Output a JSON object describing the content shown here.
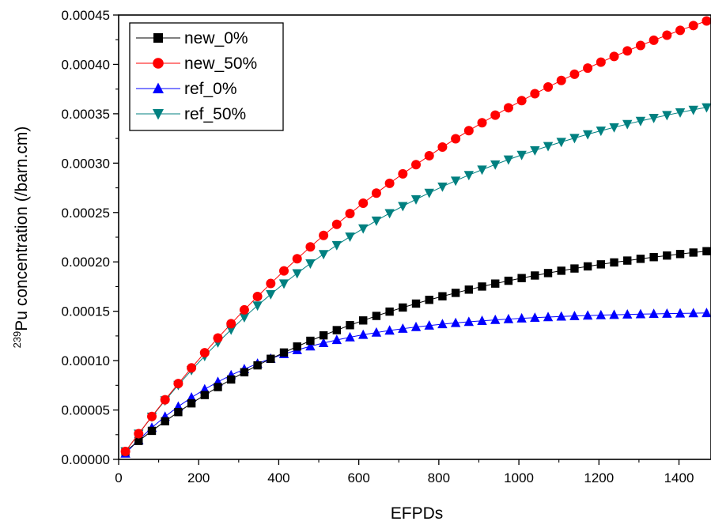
{
  "chart_data": {
    "type": "line",
    "title": "",
    "xlabel": "EFPDs",
    "ylabel": {
      "superscript": "239",
      "text": "Pu concentration (/barn.cm)"
    },
    "xlim": [
      0,
      1480
    ],
    "ylim": [
      0,
      0.00045
    ],
    "x_ticks": [
      0,
      200,
      400,
      600,
      800,
      1000,
      1200,
      1400
    ],
    "x_tick_labels": [
      "0",
      "200",
      "400",
      "600",
      "800",
      "1000",
      "1200",
      "1400"
    ],
    "y_ticks": [
      0,
      5e-05,
      0.0001,
      0.00015,
      0.0002,
      0.00025,
      0.0003,
      0.00035,
      0.0004,
      0.00045
    ],
    "y_tick_labels": [
      "0.00000",
      "0.00005",
      "0.00010",
      "0.00015",
      "0.00020",
      "0.00025",
      "0.00030",
      "0.00035",
      "0.00040",
      "0.00045"
    ],
    "grid": false,
    "legend_position": "top-left",
    "x_start": 17,
    "x_step": 33,
    "points_per_series": 45,
    "series": [
      {
        "name": "new_0%",
        "marker": "square",
        "color": "#000000",
        "model": {
          "asymptote": 0.00024,
          "tau": 700,
          "y0": 8e-06
        }
      },
      {
        "name": "new_50%",
        "marker": "circle",
        "color": "#ff0000",
        "model": {
          "asymptote": 0.00059,
          "tau": 1050,
          "y0": 8e-06
        }
      },
      {
        "name": "ref_0%",
        "marker": "triangle-up",
        "color": "#0000ff",
        "model": {
          "asymptote": 0.00015,
          "tau": 330,
          "y0": 6e-06
        }
      },
      {
        "name": "ref_50%",
        "marker": "triangle-down",
        "color": "#008080",
        "model": {
          "asymptote": 0.00041,
          "tau": 720,
          "y0": 8e-06
        }
      }
    ]
  }
}
